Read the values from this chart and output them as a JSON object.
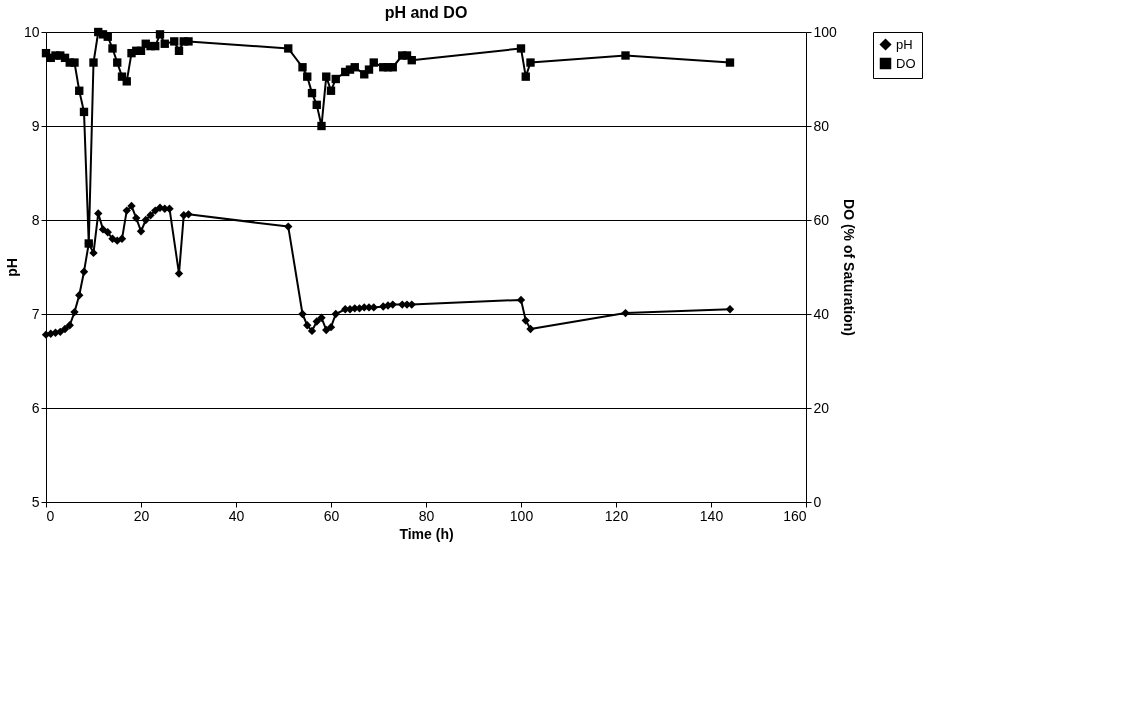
{
  "chart_data": {
    "type": "line",
    "title": "pH and DO",
    "xlabel": "Time (h)",
    "ylabel": "pH",
    "y2label": "DO (% of Saturation)",
    "xlim": [
      0,
      160
    ],
    "xticks": [
      0,
      20,
      40,
      60,
      80,
      100,
      120,
      140,
      160
    ],
    "ylim": [
      5,
      10
    ],
    "yticks": [
      5,
      6,
      7,
      8,
      9,
      10
    ],
    "y2lim": [
      0,
      100
    ],
    "y2ticks": [
      0,
      20,
      40,
      60,
      80,
      100
    ],
    "grid": "y",
    "legend": "right",
    "line_style": "solid",
    "series": [
      {
        "name": "pH",
        "color": "#000000",
        "marker": "diamond",
        "x": [
          0,
          1,
          2,
          3,
          4,
          5,
          6,
          7,
          8,
          9,
          10,
          11,
          12,
          13,
          14,
          15,
          16,
          17,
          18,
          19,
          20,
          21,
          22,
          23,
          24,
          25,
          26,
          28,
          29,
          30,
          51,
          54,
          55,
          56,
          57,
          58,
          59,
          60,
          61,
          63,
          64,
          65,
          66,
          67,
          68,
          69,
          71,
          72,
          73,
          75,
          76,
          77,
          100,
          101,
          102,
          122,
          144
        ],
        "values": [
          6.78,
          6.79,
          6.8,
          6.81,
          6.84,
          6.88,
          7.02,
          7.2,
          7.45,
          7.75,
          7.65,
          8.07,
          7.9,
          7.87,
          7.8,
          7.78,
          7.8,
          8.1,
          8.15,
          8.02,
          7.88,
          8.0,
          8.05,
          8.1,
          8.13,
          8.12,
          8.12,
          7.43,
          8.05,
          8.06,
          7.93,
          7.0,
          6.88,
          6.82,
          6.92,
          6.96,
          6.83,
          6.86,
          7.0,
          7.05,
          7.05,
          7.06,
          7.06,
          7.07,
          7.07,
          7.07,
          7.08,
          7.09,
          7.1,
          7.1,
          7.1,
          7.1,
          7.15,
          6.93,
          6.84,
          7.01,
          7.05
        ]
      },
      {
        "name": "DO",
        "color": "#000000",
        "marker": "square",
        "axis": "y2",
        "x": [
          0,
          1,
          2,
          3,
          4,
          5,
          6,
          7,
          8,
          9,
          10,
          11,
          12,
          13,
          14,
          15,
          16,
          17,
          18,
          19,
          20,
          21,
          22,
          23,
          24,
          25,
          27,
          28,
          29,
          30,
          51,
          54,
          55,
          56,
          57,
          58,
          59,
          60,
          61,
          63,
          64,
          65,
          67,
          68,
          69,
          71,
          72,
          73,
          75,
          76,
          77,
          100,
          101,
          102,
          122,
          144
        ],
        "values": [
          95.5,
          94.5,
          95,
          95,
          94.5,
          93.5,
          93.5,
          87.5,
          83,
          55,
          93.5,
          100,
          99.5,
          99,
          96.5,
          93.5,
          90.5,
          89.5,
          95.5,
          96,
          96,
          97.5,
          97,
          97,
          99.5,
          97.5,
          98,
          96,
          98,
          98,
          96.5,
          92.5,
          90.5,
          87,
          84.5,
          80,
          90.5,
          87.5,
          90,
          91.5,
          92,
          92.5,
          91,
          92,
          93.5,
          92.5,
          92.5,
          92.5,
          95,
          95,
          94,
          96.5,
          90.5,
          93.5,
          95,
          93.5
        ]
      }
    ]
  }
}
